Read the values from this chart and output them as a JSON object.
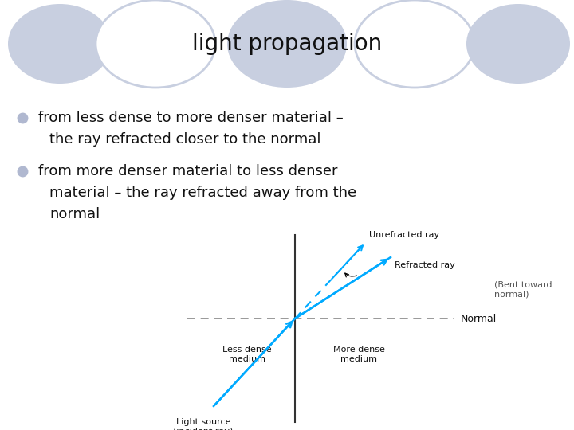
{
  "title": "light propagation",
  "bg_color": "#ffffff",
  "title_fontsize": 20,
  "bullet_color": "#b0b8d0",
  "bullet1_line1": "from less dense to more denser material –",
  "bullet1_line2": "the ray refracted closer to the normal",
  "bullet2_line1": "from more denser material to less denser",
  "bullet2_line2": "material – the ray refracted away from the",
  "bullet2_line3": "normal",
  "ellipse_color": "#c8cfe0",
  "ellipse_outline": "#c8cfe0",
  "ray_color": "#00aaff",
  "normal_dash_color": "#888888",
  "boundary_color": "#333333",
  "label_fontsize": 8,
  "text_fontsize": 13,
  "text_color": "#111111"
}
